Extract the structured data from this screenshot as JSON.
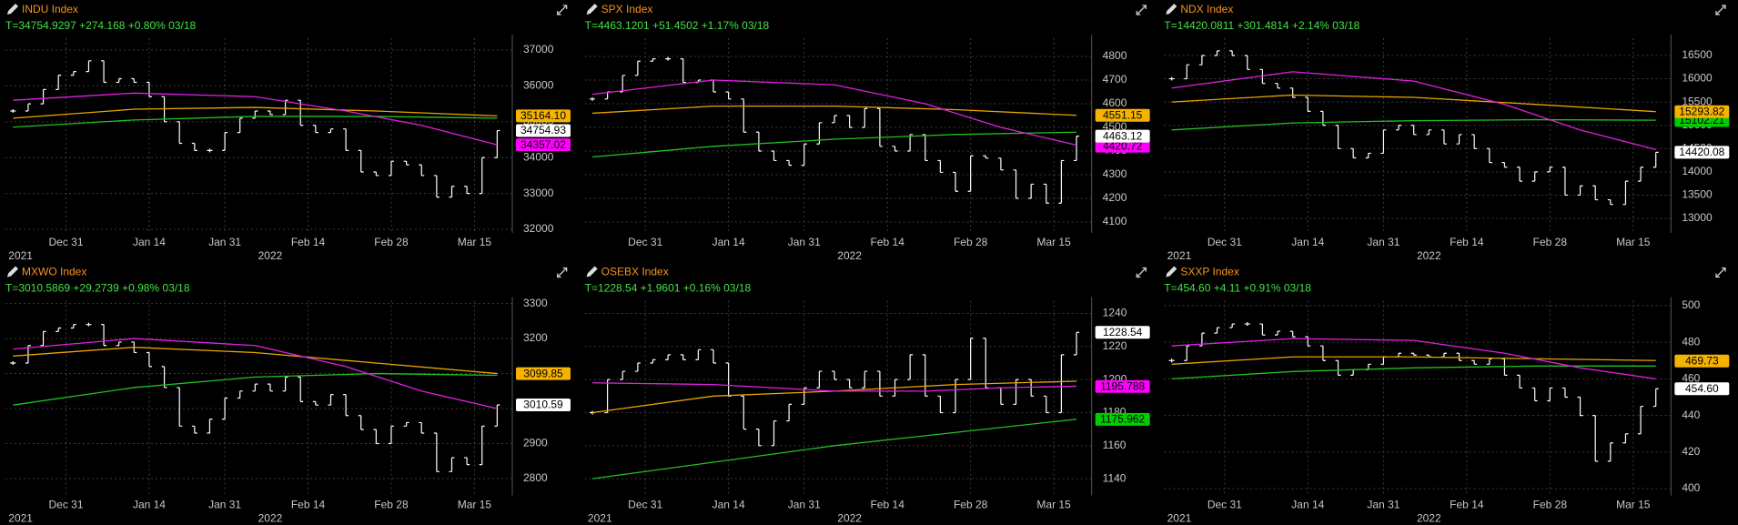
{
  "chart_data": [
    {
      "type": "stock",
      "title": "INDU Index",
      "subtitle": "T=34754.9297 +274.168 +0.80% 03/18",
      "x": [
        0,
        2,
        4,
        6,
        8,
        10,
        12,
        14,
        16,
        18,
        20,
        22,
        24,
        26,
        28,
        30,
        32,
        34,
        36,
        38,
        40,
        42,
        44,
        46,
        48,
        50,
        52,
        54,
        56,
        58,
        60,
        62,
        64
      ],
      "xlim": [
        -1,
        66
      ],
      "xticks": [
        {
          "value": 7,
          "label": "Dec 31"
        },
        {
          "value": 18,
          "label": "Jan 14"
        },
        {
          "value": 28,
          "label": "Jan 31"
        },
        {
          "value": 39,
          "label": "Feb 14"
        },
        {
          "value": 50,
          "label": "Feb 28"
        },
        {
          "value": 61,
          "label": "Mar 15"
        }
      ],
      "year_ticks": [
        {
          "value": 1,
          "label": "2021"
        },
        {
          "value": 34,
          "label": "2022"
        }
      ],
      "ylim": [
        31900,
        37330
      ],
      "yticks": [
        32000,
        33000,
        34000,
        35000,
        36000,
        37000
      ],
      "grid": true,
      "price": {
        "color": "#ffffff",
        "values": [
          35300,
          35500,
          35900,
          36300,
          36400,
          36700,
          36100,
          36200,
          36100,
          35700,
          35000,
          34400,
          34200,
          34200,
          34700,
          35100,
          35300,
          35200,
          35600,
          34900,
          34700,
          34800,
          34200,
          33600,
          33500,
          33900,
          33800,
          33500,
          32900,
          33200,
          33000,
          34000,
          34754.9297
        ]
      },
      "averages": [
        {
          "color": "#e8a400",
          "x": [
            0,
            16,
            32,
            48,
            64
          ],
          "values": [
            35100,
            35350,
            35400,
            35300,
            35164
          ]
        },
        {
          "color": "#22c022",
          "x": [
            0,
            16,
            32,
            48,
            64
          ],
          "values": [
            34850,
            35050,
            35150,
            35150,
            35100
          ]
        },
        {
          "color": "#e020e0",
          "x": [
            0,
            16,
            32,
            44,
            54,
            64
          ],
          "values": [
            35600,
            35800,
            35700,
            35300,
            34900,
            34357
          ]
        }
      ],
      "last_labels": [
        {
          "value": 34357.02,
          "label": "34357.02",
          "color": "#ff00ff"
        },
        {
          "value": 35164.1,
          "label": "35164.10",
          "color": "#f5b300"
        },
        {
          "value": 34754.93,
          "label": "34754.93",
          "color": "#ffffff"
        }
      ]
    },
    {
      "type": "stock",
      "title": "SPX Index",
      "subtitle": "T=4463.1201 +51.4502 +1.17% 03/18",
      "x": [
        0,
        2,
        4,
        6,
        8,
        10,
        12,
        14,
        16,
        18,
        20,
        22,
        24,
        26,
        28,
        30,
        32,
        34,
        36,
        38,
        40,
        42,
        44,
        46,
        48,
        50,
        52,
        54,
        56,
        58,
        60,
        62,
        64
      ],
      "xlim": [
        -1,
        66
      ],
      "xticks": [
        {
          "value": 7,
          "label": "Dec 31"
        },
        {
          "value": 18,
          "label": "Jan 14"
        },
        {
          "value": 28,
          "label": "Jan 31"
        },
        {
          "value": 39,
          "label": "Feb 14"
        },
        {
          "value": 50,
          "label": "Feb 28"
        },
        {
          "value": 61,
          "label": "Mar 15"
        }
      ],
      "year_ticks": [
        {
          "value": 34,
          "label": "2022"
        }
      ],
      "ylim": [
        4054,
        4877
      ],
      "yticks": [
        4100,
        4200,
        4300,
        4400,
        4500,
        4600,
        4700,
        4800
      ],
      "grid": true,
      "price": {
        "color": "#ffffff",
        "values": [
          4620,
          4650,
          4720,
          4780,
          4790,
          4790,
          4690,
          4700,
          4650,
          4620,
          4480,
          4400,
          4360,
          4340,
          4430,
          4520,
          4550,
          4500,
          4580,
          4420,
          4400,
          4470,
          4360,
          4310,
          4230,
          4380,
          4370,
          4320,
          4200,
          4260,
          4180,
          4360,
          4463.1201
        ]
      },
      "averages": [
        {
          "color": "#e8a400",
          "x": [
            0,
            16,
            32,
            48,
            64
          ],
          "values": [
            4560,
            4590,
            4590,
            4575,
            4551
          ]
        },
        {
          "color": "#22c022",
          "x": [
            0,
            16,
            32,
            48,
            64
          ],
          "values": [
            4375,
            4420,
            4450,
            4470,
            4480
          ]
        },
        {
          "color": "#e020e0",
          "x": [
            0,
            16,
            32,
            44,
            54,
            64
          ],
          "values": [
            4640,
            4700,
            4680,
            4600,
            4500,
            4425
          ]
        }
      ],
      "last_labels": [
        {
          "value": 4420.72,
          "label": "4420.72",
          "color": "#ff00ff"
        },
        {
          "value": 4551.15,
          "label": "4551.15",
          "color": "#f5b300"
        },
        {
          "value": 4463.12,
          "label": "4463.12",
          "color": "#ffffff"
        }
      ]
    },
    {
      "type": "stock",
      "title": "NDX Index",
      "subtitle": "T=14420.0811 +301.4814 +2.14% 03/18",
      "x": [
        0,
        2,
        4,
        6,
        8,
        10,
        12,
        14,
        16,
        18,
        20,
        22,
        24,
        26,
        28,
        30,
        32,
        34,
        36,
        38,
        40,
        42,
        44,
        46,
        48,
        50,
        52,
        54,
        56,
        58,
        60,
        62,
        64
      ],
      "xlim": [
        -1,
        66
      ],
      "xticks": [
        {
          "value": 7,
          "label": "Dec 31"
        },
        {
          "value": 18,
          "label": "Jan 14"
        },
        {
          "value": 28,
          "label": "Jan 31"
        },
        {
          "value": 39,
          "label": "Feb 14"
        },
        {
          "value": 50,
          "label": "Feb 28"
        },
        {
          "value": 61,
          "label": "Mar 15"
        }
      ],
      "year_ticks": [
        {
          "value": 1,
          "label": "2021"
        },
        {
          "value": 34,
          "label": "2022"
        }
      ],
      "ylim": [
        12688,
        16871
      ],
      "yticks": [
        13000,
        13500,
        14000,
        14500,
        15000,
        15500,
        16000,
        16500
      ],
      "grid": true,
      "price": {
        "color": "#ffffff",
        "values": [
          16000,
          16300,
          16500,
          16600,
          16500,
          16200,
          15900,
          15800,
          15600,
          15300,
          15000,
          14500,
          14300,
          14400,
          14900,
          15000,
          14800,
          14900,
          14600,
          14800,
          14500,
          14200,
          14100,
          13800,
          14000,
          14100,
          13500,
          13700,
          13400,
          13300,
          13800,
          14100,
          14420.0811
        ]
      },
      "averages": [
        {
          "color": "#e8a400",
          "x": [
            0,
            16,
            32,
            48,
            64
          ],
          "values": [
            15500,
            15650,
            15600,
            15450,
            15294
          ]
        },
        {
          "color": "#22c022",
          "x": [
            0,
            16,
            32,
            48,
            64
          ],
          "values": [
            14900,
            15050,
            15100,
            15120,
            15110
          ]
        },
        {
          "color": "#e020e0",
          "x": [
            0,
            16,
            32,
            44,
            54,
            64
          ],
          "values": [
            15800,
            16150,
            15950,
            15450,
            14900,
            14480
          ]
        }
      ],
      "last_labels": [
        {
          "value": 15102.21,
          "label": "15102.21",
          "color": "#00cc00"
        },
        {
          "value": 15293.82,
          "label": "15293.82",
          "color": "#f5b300"
        },
        {
          "value": 14420.08,
          "label": "14420.08",
          "color": "#ffffff"
        }
      ]
    },
    {
      "type": "stock",
      "title": "MXWO Index",
      "subtitle": "T=3010.5869 +29.2739 +0.98% 03/18",
      "x": [
        0,
        2,
        4,
        6,
        8,
        10,
        12,
        14,
        16,
        18,
        20,
        22,
        24,
        26,
        28,
        30,
        32,
        34,
        36,
        38,
        40,
        42,
        44,
        46,
        48,
        50,
        52,
        54,
        56,
        58,
        60,
        62,
        64
      ],
      "xlim": [
        -1,
        66
      ],
      "xticks": [
        {
          "value": 7,
          "label": "Dec 31"
        },
        {
          "value": 18,
          "label": "Jan 14"
        },
        {
          "value": 28,
          "label": "Jan 31"
        },
        {
          "value": 39,
          "label": "Feb 14"
        },
        {
          "value": 50,
          "label": "Feb 28"
        },
        {
          "value": 61,
          "label": "Mar 15"
        }
      ],
      "year_ticks": [
        {
          "value": 1,
          "label": "2021"
        },
        {
          "value": 34,
          "label": "2022"
        }
      ],
      "ylim": [
        2752,
        3308
      ],
      "yticks": [
        2800,
        2900,
        3000,
        3100,
        3200,
        3300
      ],
      "grid": true,
      "price": {
        "color": "#ffffff",
        "values": [
          3130,
          3180,
          3220,
          3230,
          3240,
          3240,
          3180,
          3190,
          3160,
          3120,
          3060,
          2950,
          2930,
          2970,
          3030,
          3050,
          3070,
          3050,
          3090,
          3020,
          3010,
          3040,
          2980,
          2940,
          2900,
          2950,
          2960,
          2930,
          2820,
          2860,
          2840,
          2950,
          3010.5869
        ]
      },
      "averages": [
        {
          "color": "#e8a400",
          "x": [
            0,
            16,
            32,
            48,
            64
          ],
          "values": [
            3150,
            3175,
            3160,
            3130,
            3100
          ]
        },
        {
          "color": "#22c022",
          "x": [
            0,
            16,
            32,
            48,
            64
          ],
          "values": [
            3010,
            3060,
            3090,
            3100,
            3095
          ]
        },
        {
          "color": "#e020e0",
          "x": [
            0,
            16,
            32,
            44,
            54,
            64
          ],
          "values": [
            3170,
            3200,
            3180,
            3120,
            3050,
            3000
          ]
        }
      ],
      "last_labels": [
        {
          "value": 3099.85,
          "label": "3099.85",
          "color": "#f5b300"
        },
        {
          "value": 3010.59,
          "label": "3010.59",
          "color": "#ffffff"
        }
      ]
    },
    {
      "type": "stock",
      "title": "OSEBX Index",
      "subtitle": "T=1228.54 +1.9601 +0.16% 03/18",
      "x": [
        0,
        2,
        4,
        6,
        8,
        10,
        12,
        14,
        16,
        18,
        20,
        22,
        24,
        26,
        28,
        30,
        32,
        34,
        36,
        38,
        40,
        42,
        44,
        46,
        48,
        50,
        52,
        54,
        56,
        58,
        60,
        62,
        64
      ],
      "xlim": [
        -1,
        66
      ],
      "xticks": [
        {
          "value": 7,
          "label": "Dec 31"
        },
        {
          "value": 18,
          "label": "Jan 14"
        },
        {
          "value": 28,
          "label": "Jan 31"
        },
        {
          "value": 39,
          "label": "Feb 14"
        },
        {
          "value": 50,
          "label": "Feb 28"
        },
        {
          "value": 61,
          "label": "Mar 15"
        }
      ],
      "year_ticks": [
        {
          "value": 1,
          "label": "2021"
        },
        {
          "value": 34,
          "label": "2022"
        }
      ],
      "ylim": [
        1129.9,
        1247.7
      ],
      "yticks": [
        1140,
        1160,
        1180,
        1200,
        1220,
        1240
      ],
      "grid": true,
      "price": {
        "color": "#ffffff",
        "values": [
          1180,
          1200,
          1205,
          1210,
          1212,
          1215,
          1212,
          1218,
          1210,
          1190,
          1170,
          1160,
          1175,
          1185,
          1195,
          1205,
          1200,
          1195,
          1205,
          1190,
          1200,
          1215,
          1190,
          1180,
          1200,
          1225,
          1195,
          1185,
          1200,
          1190,
          1180,
          1215,
          1228.54
        ]
      },
      "averages": [
        {
          "color": "#e8a400",
          "x": [
            0,
            16,
            32,
            48,
            64
          ],
          "values": [
            1180,
            1190,
            1193,
            1197,
            1199
          ]
        },
        {
          "color": "#22c022",
          "x": [
            0,
            16,
            32,
            48,
            64
          ],
          "values": [
            1140,
            1150,
            1160,
            1168,
            1176
          ]
        },
        {
          "color": "#e020e0",
          "x": [
            0,
            16,
            32,
            44,
            54,
            64
          ],
          "values": [
            1198,
            1197,
            1193,
            1193,
            1195,
            1196
          ]
        }
      ],
      "last_labels": [
        {
          "value": 1228.54,
          "label": "1228.54",
          "color": "#ffffff"
        },
        {
          "value": 1195.788,
          "label": "1195.788",
          "color": "#ff00ff"
        },
        {
          "value": 1175.962,
          "label": "1175.962",
          "color": "#00cc00"
        }
      ]
    },
    {
      "type": "stock",
      "title": "SXXP Index",
      "subtitle": "T=454.60 +4.11 +0.91% 03/18",
      "x": [
        0,
        2,
        4,
        6,
        8,
        10,
        12,
        14,
        16,
        18,
        20,
        22,
        24,
        26,
        28,
        30,
        32,
        34,
        36,
        38,
        40,
        42,
        44,
        46,
        48,
        50,
        52,
        54,
        56,
        58,
        60,
        62,
        64
      ],
      "xlim": [
        -1,
        66
      ],
      "xticks": [
        {
          "value": 7,
          "label": "Dec 31"
        },
        {
          "value": 18,
          "label": "Jan 14"
        },
        {
          "value": 28,
          "label": "Jan 31"
        },
        {
          "value": 39,
          "label": "Feb 14"
        },
        {
          "value": 50,
          "label": "Feb 28"
        },
        {
          "value": 61,
          "label": "Mar 15"
        }
      ],
      "year_ticks": [
        {
          "value": 1,
          "label": "2021"
        },
        {
          "value": 34,
          "label": "2022"
        }
      ],
      "ylim": [
        396.3,
        502.7
      ],
      "yticks": [
        400,
        420,
        440,
        460,
        480,
        500
      ],
      "grid": true,
      "price": {
        "color": "#ffffff",
        "values": [
          470,
          478,
          485,
          488,
          490,
          490,
          484,
          486,
          483,
          478,
          470,
          462,
          465,
          468,
          472,
          474,
          473,
          472,
          474,
          470,
          468,
          471,
          462,
          455,
          448,
          455,
          450,
          440,
          415,
          425,
          430,
          445,
          454.6
        ]
      },
      "averages": [
        {
          "color": "#e8a400",
          "x": [
            0,
            16,
            32,
            48,
            64
          ],
          "values": [
            468,
            472,
            472,
            471,
            470
          ]
        },
        {
          "color": "#22c022",
          "x": [
            0,
            16,
            32,
            48,
            64
          ],
          "values": [
            460,
            464,
            466,
            467,
            467
          ]
        },
        {
          "color": "#e020e0",
          "x": [
            0,
            16,
            32,
            44,
            54,
            64
          ],
          "values": [
            478,
            482,
            481,
            474,
            466,
            460
          ]
        }
      ],
      "last_labels": [
        {
          "value": 469.73,
          "label": "469.73",
          "color": "#f5b300"
        },
        {
          "value": 454.6,
          "label": "454.60",
          "color": "#ffffff"
        }
      ]
    }
  ]
}
